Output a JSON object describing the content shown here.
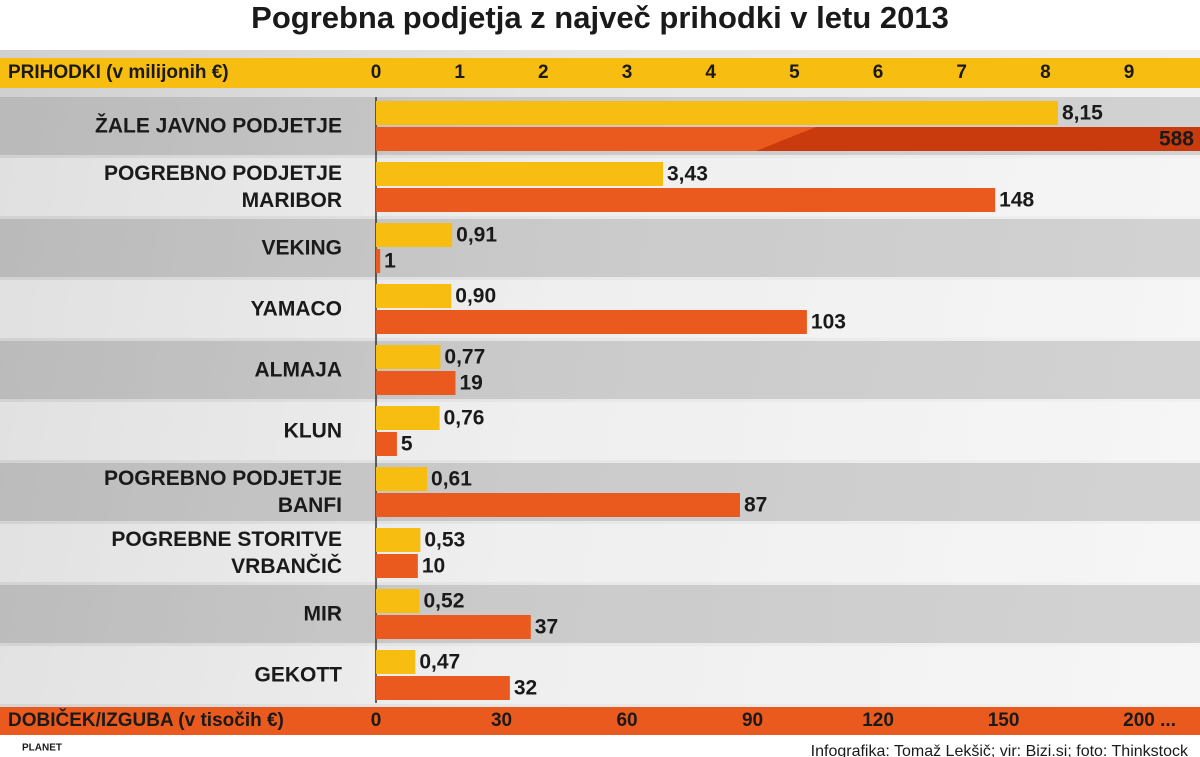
{
  "chart_data": {
    "type": "bar",
    "title": "Pogrebna podjetja z največ prihodki v letu 2013",
    "xlabel": "PRIHODKI (v milijonih €)",
    "x2label": "DOBIČEK/IZGUBA (v tisočih €)",
    "categories": [
      "ŽALE JAVNO PODJETJE",
      "POGREBNO PODJETJE\nMARIBOR",
      "VEKING",
      "YAMACO",
      "ALMAJA",
      "KLUN",
      "POGREBNO PODJETJE\nBANFI",
      "POGREBNE STORITVE\nVRBANČIČ",
      "MIR",
      "GEKOTT"
    ],
    "revenue": {
      "color": "#f7bd10",
      "values": [
        8.15,
        3.43,
        0.91,
        0.9,
        0.77,
        0.76,
        0.61,
        0.53,
        0.52,
        0.47
      ],
      "value_labels": [
        "8,15",
        "3,43",
        "0,91",
        "0,90",
        "0,77",
        "0,76",
        "0,61",
        "0,53",
        "0,52",
        "0,47"
      ]
    },
    "profit": {
      "color": "#ea5a1e",
      "values": [
        588,
        148,
        1,
        103,
        19,
        5,
        87,
        10,
        37,
        32
      ]
    },
    "xlim": [
      0,
      9.8
    ],
    "xticks": [
      0,
      1,
      2,
      3,
      4,
      5,
      6,
      7,
      8,
      9
    ],
    "x2lim": [
      0,
      196
    ],
    "x2ticks": [
      0,
      30,
      60,
      90,
      120,
      150,
      {
        "value": 200,
        "label": "200 ..."
      }
    ],
    "source": "Infografika: Tomaž Lekšič; vir: Bizi.si; foto: Thinkstock",
    "logo": "PLANET"
  }
}
